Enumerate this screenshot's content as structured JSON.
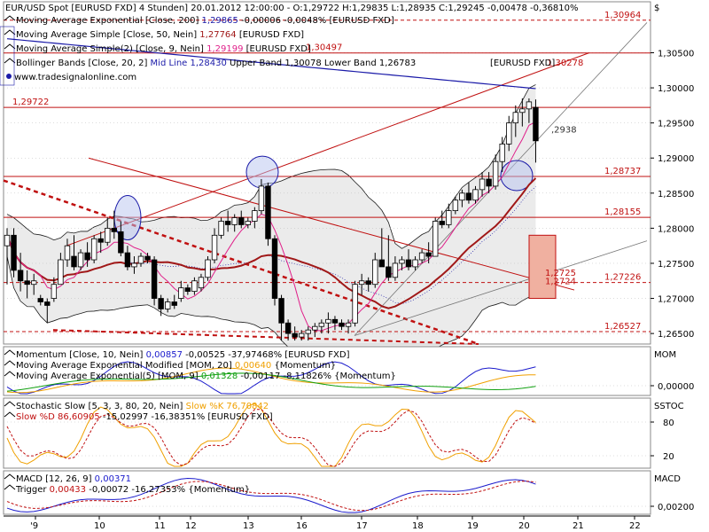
{
  "colors": {
    "ema200": "#1a1aa8",
    "sma50": "#a01818",
    "sma9": "#e0208a",
    "bollinger": "#1a1a1a",
    "hline": "#c01010",
    "momentum": "#1a1acc",
    "signal_orange": "#f0a000",
    "signal_green": "#10a010",
    "stoch_k": "#f0a000",
    "stoch_d": "#c01010",
    "macd": "#1a1acc",
    "macd_trigger": "#c01010",
    "grid": "#bbbbbb",
    "panel_bg": "#e6e6e6",
    "highlight_box": "#f0b0a0"
  },
  "icons": {
    "panel_expand": "triangle-icon",
    "currency": "dollar-icon"
  },
  "chart_data": [
    {
      "type": "candlestick",
      "title": "EUR/USD Spot [EURUSD FXD]",
      "info_line": "EUR/USD Spot [EURUSD FXD]  4 Stunden] 20.01.2012 12:00:00 - O:1,29722 H:1,29835 L:1,28935 C:1,29245 -0,00478 -0,36810%",
      "legend": [
        {
          "prefix": "Moving Average Exponential [Close, 200] ",
          "value": "1,29865",
          "suffix": " -0,00006 -0,0048% [EURUSD FXD]",
          "value_color": "#1a1aa8"
        },
        {
          "prefix": "Moving Average Simple [Close, 50, Nein] ",
          "value": "1,27764",
          "suffix": "                 [EURUSD FXD]",
          "value_color": "#a01818"
        },
        {
          "prefix": "Moving Average Simple(2) [Close, 9, Nein] ",
          "value": "1,29199",
          "suffix": "             [EURUSD FXD]",
          "value_color": "#e0208a"
        },
        {
          "prefix": "Bollinger Bands [Close, 20, 2] ",
          "value": "Mid Line 1,28430",
          "suffix": " Upper Band 1,30078 Lower Band 1,26783",
          "value_color": "#1a1aa8"
        }
      ],
      "source": "www.tradesignalonline.com",
      "symbol_tag": "[EURUSD FXD]",
      "currency_label": "$",
      "y_ticks": [
        "1,30500",
        "1,30000",
        "1,29500",
        "1,29000",
        "1,28500",
        "1,28000",
        "1,27500",
        "1,27000",
        "1,26500"
      ],
      "ylim": [
        1.2635,
        1.311
      ],
      "x_ticks": [
        "9",
        "10",
        "11",
        "12",
        "13",
        "16",
        "17",
        "18",
        "19",
        "20",
        "21",
        "22"
      ],
      "x_tick_prefix": "'",
      "horizontal_levels": [
        {
          "value": 1.30964,
          "label": "1,30964",
          "style": "dashed"
        },
        {
          "value": 1.30497,
          "label": "1,30497",
          "style": "solid"
        },
        {
          "value": 1.30278,
          "label": "1,30278",
          "style": "none"
        },
        {
          "value": 1.29722,
          "label": "1,29722",
          "style": "solid"
        },
        {
          "value": 1.28737,
          "label": "1,28737",
          "style": "solid"
        },
        {
          "value": 1.28155,
          "label": "1,28155",
          "style": "solid"
        },
        {
          "value": 1.27226,
          "label": "1,27226",
          "style": "dashed"
        },
        {
          "value": 1.26527,
          "label": "1,26527",
          "style": "dashed"
        }
      ],
      "annotations": [
        "1,2725",
        "1,2724",
        ",2938"
      ],
      "candles": [
        {
          "o": 1.2775,
          "h": 1.28,
          "l": 1.272,
          "c": 1.279
        },
        {
          "o": 1.279,
          "h": 1.28,
          "l": 1.273,
          "c": 1.274
        },
        {
          "o": 1.274,
          "h": 1.2765,
          "l": 1.271,
          "c": 1.2725
        },
        {
          "o": 1.2725,
          "h": 1.274,
          "l": 1.27,
          "c": 1.272
        },
        {
          "o": 1.272,
          "h": 1.2735,
          "l": 1.2705,
          "c": 1.2725
        },
        {
          "o": 1.27,
          "h": 1.2705,
          "l": 1.269,
          "c": 1.2695
        },
        {
          "o": 1.2695,
          "h": 1.27,
          "l": 1.2665,
          "c": 1.269
        },
        {
          "o": 1.27,
          "h": 1.273,
          "l": 1.2695,
          "c": 1.272
        },
        {
          "o": 1.272,
          "h": 1.2765,
          "l": 1.272,
          "c": 1.2755
        },
        {
          "o": 1.2755,
          "h": 1.2785,
          "l": 1.2745,
          "c": 1.2775
        },
        {
          "o": 1.276,
          "h": 1.279,
          "l": 1.274,
          "c": 1.2745
        },
        {
          "o": 1.2745,
          "h": 1.277,
          "l": 1.274,
          "c": 1.2765
        },
        {
          "o": 1.2765,
          "h": 1.278,
          "l": 1.2745,
          "c": 1.2755
        },
        {
          "o": 1.2755,
          "h": 1.279,
          "l": 1.275,
          "c": 1.2785
        },
        {
          "o": 1.2785,
          "h": 1.2795,
          "l": 1.2765,
          "c": 1.278
        },
        {
          "o": 1.278,
          "h": 1.2815,
          "l": 1.2775,
          "c": 1.28
        },
        {
          "o": 1.28,
          "h": 1.2825,
          "l": 1.2785,
          "c": 1.2795
        },
        {
          "o": 1.2795,
          "h": 1.281,
          "l": 1.276,
          "c": 1.2765
        },
        {
          "o": 1.2765,
          "h": 1.2775,
          "l": 1.274,
          "c": 1.2745
        },
        {
          "o": 1.2745,
          "h": 1.276,
          "l": 1.2735,
          "c": 1.275
        },
        {
          "o": 1.275,
          "h": 1.2765,
          "l": 1.2745,
          "c": 1.276
        },
        {
          "o": 1.276,
          "h": 1.2765,
          "l": 1.275,
          "c": 1.2755
        },
        {
          "o": 1.2755,
          "h": 1.276,
          "l": 1.269,
          "c": 1.27
        },
        {
          "o": 1.27,
          "h": 1.2705,
          "l": 1.2675,
          "c": 1.2685
        },
        {
          "o": 1.2685,
          "h": 1.27,
          "l": 1.268,
          "c": 1.2695
        },
        {
          "o": 1.2695,
          "h": 1.2705,
          "l": 1.2685,
          "c": 1.269
        },
        {
          "o": 1.27,
          "h": 1.2725,
          "l": 1.2695,
          "c": 1.2715
        },
        {
          "o": 1.2715,
          "h": 1.272,
          "l": 1.2705,
          "c": 1.271
        },
        {
          "o": 1.271,
          "h": 1.273,
          "l": 1.2705,
          "c": 1.2725
        },
        {
          "o": 1.2715,
          "h": 1.2735,
          "l": 1.271,
          "c": 1.273
        },
        {
          "o": 1.273,
          "h": 1.276,
          "l": 1.2725,
          "c": 1.2755
        },
        {
          "o": 1.2755,
          "h": 1.28,
          "l": 1.275,
          "c": 1.279
        },
        {
          "o": 1.279,
          "h": 1.2815,
          "l": 1.2785,
          "c": 1.281
        },
        {
          "o": 1.281,
          "h": 1.2825,
          "l": 1.2795,
          "c": 1.2805
        },
        {
          "o": 1.2805,
          "h": 1.282,
          "l": 1.2795,
          "c": 1.2815
        },
        {
          "o": 1.2815,
          "h": 1.2825,
          "l": 1.28,
          "c": 1.2805
        },
        {
          "o": 1.2805,
          "h": 1.2815,
          "l": 1.28,
          "c": 1.281
        },
        {
          "o": 1.281,
          "h": 1.283,
          "l": 1.28,
          "c": 1.2825
        },
        {
          "o": 1.2825,
          "h": 1.287,
          "l": 1.282,
          "c": 1.286
        },
        {
          "o": 1.286,
          "h": 1.2865,
          "l": 1.2775,
          "c": 1.2785
        },
        {
          "o": 1.2785,
          "h": 1.279,
          "l": 1.269,
          "c": 1.27
        },
        {
          "o": 1.27,
          "h": 1.2705,
          "l": 1.264,
          "c": 1.2665
        },
        {
          "o": 1.2665,
          "h": 1.267,
          "l": 1.264,
          "c": 1.265
        },
        {
          "o": 1.265,
          "h": 1.266,
          "l": 1.264,
          "c": 1.2645
        },
        {
          "o": 1.2645,
          "h": 1.2655,
          "l": 1.264,
          "c": 1.265
        },
        {
          "o": 1.265,
          "h": 1.266,
          "l": 1.264,
          "c": 1.2655
        },
        {
          "o": 1.2655,
          "h": 1.2665,
          "l": 1.2645,
          "c": 1.266
        },
        {
          "o": 1.266,
          "h": 1.267,
          "l": 1.265,
          "c": 1.2665
        },
        {
          "o": 1.2665,
          "h": 1.268,
          "l": 1.265,
          "c": 1.267
        },
        {
          "o": 1.267,
          "h": 1.2675,
          "l": 1.2655,
          "c": 1.2665
        },
        {
          "o": 1.2665,
          "h": 1.267,
          "l": 1.2655,
          "c": 1.266
        },
        {
          "o": 1.266,
          "h": 1.267,
          "l": 1.265,
          "c": 1.2665
        },
        {
          "o": 1.2665,
          "h": 1.2725,
          "l": 1.266,
          "c": 1.272
        },
        {
          "o": 1.272,
          "h": 1.2735,
          "l": 1.2705,
          "c": 1.2725
        },
        {
          "o": 1.2725,
          "h": 1.273,
          "l": 1.271,
          "c": 1.272
        },
        {
          "o": 1.272,
          "h": 1.2765,
          "l": 1.2715,
          "c": 1.2755
        },
        {
          "o": 1.2755,
          "h": 1.28,
          "l": 1.2745,
          "c": 1.2745
        },
        {
          "o": 1.2745,
          "h": 1.279,
          "l": 1.2725,
          "c": 1.273
        },
        {
          "o": 1.273,
          "h": 1.276,
          "l": 1.2725,
          "c": 1.275
        },
        {
          "o": 1.275,
          "h": 1.276,
          "l": 1.274,
          "c": 1.2755
        },
        {
          "o": 1.2755,
          "h": 1.277,
          "l": 1.274,
          "c": 1.2745
        },
        {
          "o": 1.2745,
          "h": 1.276,
          "l": 1.274,
          "c": 1.2755
        },
        {
          "o": 1.2755,
          "h": 1.277,
          "l": 1.275,
          "c": 1.2765
        },
        {
          "o": 1.2765,
          "h": 1.278,
          "l": 1.275,
          "c": 1.276
        },
        {
          "o": 1.276,
          "h": 1.2815,
          "l": 1.276,
          "c": 1.281
        },
        {
          "o": 1.281,
          "h": 1.2825,
          "l": 1.28,
          "c": 1.2805
        },
        {
          "o": 1.2805,
          "h": 1.2835,
          "l": 1.28,
          "c": 1.2825
        },
        {
          "o": 1.2825,
          "h": 1.2845,
          "l": 1.282,
          "c": 1.284
        },
        {
          "o": 1.284,
          "h": 1.2855,
          "l": 1.283,
          "c": 1.285
        },
        {
          "o": 1.285,
          "h": 1.2865,
          "l": 1.2835,
          "c": 1.284
        },
        {
          "o": 1.284,
          "h": 1.286,
          "l": 1.2835,
          "c": 1.2855
        },
        {
          "o": 1.2855,
          "h": 1.288,
          "l": 1.2845,
          "c": 1.287
        },
        {
          "o": 1.287,
          "h": 1.288,
          "l": 1.285,
          "c": 1.286
        },
        {
          "o": 1.286,
          "h": 1.2905,
          "l": 1.2855,
          "c": 1.2895
        },
        {
          "o": 1.2895,
          "h": 1.293,
          "l": 1.288,
          "c": 1.292
        },
        {
          "o": 1.292,
          "h": 1.296,
          "l": 1.291,
          "c": 1.295
        },
        {
          "o": 1.295,
          "h": 1.2975,
          "l": 1.293,
          "c": 1.2965
        },
        {
          "o": 1.2965,
          "h": 1.2985,
          "l": 1.2945,
          "c": 1.297
        },
        {
          "o": 1.297,
          "h": 1.2985,
          "l": 1.295,
          "c": 1.298
        },
        {
          "o": 1.29722,
          "h": 1.29835,
          "l": 1.28935,
          "c": 1.29245
        }
      ]
    },
    {
      "type": "line",
      "title": "Momentum",
      "legend": [
        {
          "prefix": "Momentum [Close, 10, Nein] ",
          "value": "0,00857",
          "suffix": " -0,00525 -37,97468% [EURUSD FXD]",
          "value_color": "#1a1acc"
        },
        {
          "prefix": "Moving Average Exponential Modified [MOM, 20] ",
          "value": "0,00640",
          "suffix": "          {Momentum}",
          "value_color": "#f0a000"
        },
        {
          "prefix": "Moving Average Exponential(5) [MOM, 9] ",
          "value": "0,01328",
          "suffix": " -0,00117 -8,11826% {Momentum}",
          "value_color": "#10a010"
        }
      ],
      "panel_label": "MOM",
      "y_ticks": [
        "0,00000"
      ]
    },
    {
      "type": "line",
      "title": "Stochastic Slow",
      "legend": [
        {
          "prefix": "Stochastic Slow [5, 3, 3, 80, 20, Nein] ",
          "value": "Slow %K 76,70842",
          "suffix": "",
          "value_color": "#f0a000"
        },
        {
          "prefix": " ",
          "value": "Slow %D 86,60905",
          "suffix": " -15,02997 -16,38351% [EURUSD FXD]",
          "value_color": "#c01010"
        }
      ],
      "panel_label": "SSTOC",
      "y_ticks": [
        "80",
        "20"
      ]
    },
    {
      "type": "line",
      "title": "MACD",
      "legend": [
        {
          "prefix": "MACD [12, 26, 9] ",
          "value": "0,00371",
          "suffix": "",
          "value_color": "#1a1acc"
        },
        {
          "prefix": " Trigger ",
          "value": "0,00433",
          "suffix": " -0,00072 -16,27353% {Momentum}",
          "value_color": "#c01010"
        }
      ],
      "panel_label": "MACD",
      "y_ticks": [
        "0,00200"
      ]
    }
  ]
}
